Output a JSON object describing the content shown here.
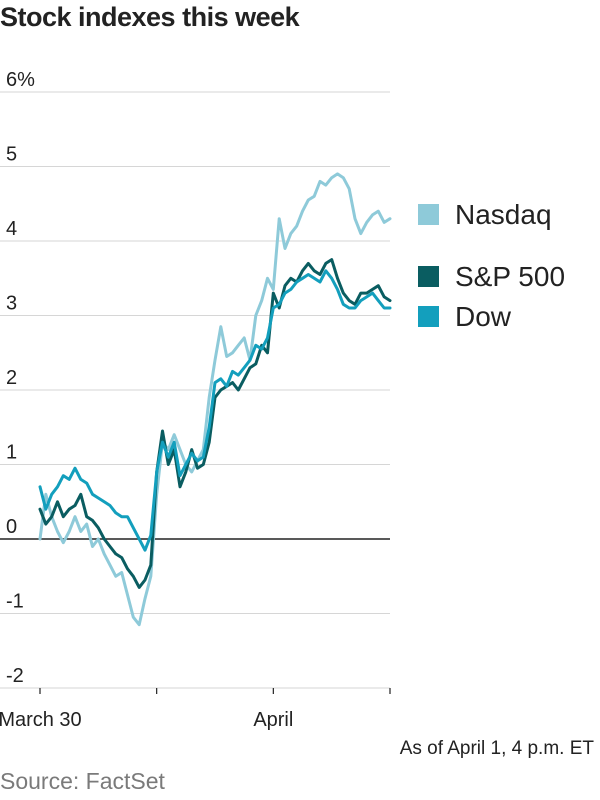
{
  "title": "Stock indexes this week",
  "note": "As of April 1, 4 p.m. ET",
  "source": "Source: FactSet",
  "colors": {
    "nasdaq": "#8ecad9",
    "sp500": "#0a5d61",
    "dow": "#139fbd",
    "grid": "#d6d6d6",
    "zero": "#222222"
  },
  "chart_data": {
    "type": "line",
    "ylim": [
      -2,
      6
    ],
    "yticks": [
      -2,
      -1,
      0,
      1,
      2,
      3,
      4,
      5,
      6
    ],
    "ytick_labels": [
      "-2",
      "-1",
      "0",
      "1",
      "2",
      "3",
      "4",
      "5",
      "6%"
    ],
    "xlim": [
      0,
      30
    ],
    "xticks": [
      0,
      10,
      20,
      30
    ],
    "xtick_labels": [
      "March 30",
      "",
      "April",
      ""
    ],
    "grid": true,
    "legend_position": "right",
    "series": [
      {
        "name": "Nasdaq",
        "color": "#8ecad9",
        "x": [
          0,
          0.5,
          1,
          1.5,
          2,
          2.5,
          3,
          3.5,
          4,
          4.5,
          5,
          5.5,
          6,
          6.5,
          7,
          7.5,
          8,
          8.5,
          9,
          9.5,
          10,
          10.5,
          11,
          11.5,
          12,
          12.5,
          13,
          13.5,
          14,
          14.5,
          15,
          15.5,
          16,
          16.5,
          17,
          17.5,
          18,
          18.5,
          19,
          19.5,
          20,
          20.5,
          21,
          21.5,
          22,
          22.5,
          23,
          23.5,
          24,
          24.5,
          25,
          25.5,
          26,
          26.5,
          27,
          27.5,
          28,
          28.5,
          29,
          29.5,
          30
        ],
        "y": [
          0,
          0.6,
          0.3,
          0.1,
          -0.05,
          0.1,
          0.3,
          0.1,
          0.2,
          -0.1,
          0,
          -0.2,
          -0.35,
          -0.5,
          -0.45,
          -0.75,
          -1.05,
          -1.15,
          -0.8,
          -0.5,
          0.6,
          1.3,
          1.2,
          1.4,
          1.2,
          1.0,
          0.9,
          1.05,
          1.2,
          1.9,
          2.4,
          2.85,
          2.45,
          2.5,
          2.6,
          2.7,
          2.4,
          3.0,
          3.2,
          3.5,
          3.35,
          4.3,
          3.9,
          4.1,
          4.2,
          4.4,
          4.55,
          4.6,
          4.8,
          4.75,
          4.85,
          4.9,
          4.85,
          4.7,
          4.3,
          4.1,
          4.25,
          4.35,
          4.4,
          4.25,
          4.3
        ]
      },
      {
        "name": "S&P 500",
        "color": "#0a5d61",
        "x": [
          0,
          0.5,
          1,
          1.5,
          2,
          2.5,
          3,
          3.5,
          4,
          4.5,
          5,
          5.5,
          6,
          6.5,
          7,
          7.5,
          8,
          8.5,
          9,
          9.5,
          10,
          10.5,
          11,
          11.5,
          12,
          12.5,
          13,
          13.5,
          14,
          14.5,
          15,
          15.5,
          16,
          16.5,
          17,
          17.5,
          18,
          18.5,
          19,
          19.5,
          20,
          20.5,
          21,
          21.5,
          22,
          22.5,
          23,
          23.5,
          24,
          24.5,
          25,
          25.5,
          26,
          26.5,
          27,
          27.5,
          28,
          28.5,
          29,
          29.5,
          30
        ],
        "y": [
          0.4,
          0.2,
          0.3,
          0.5,
          0.3,
          0.4,
          0.45,
          0.6,
          0.3,
          0.25,
          0.15,
          0,
          -0.1,
          -0.2,
          -0.25,
          -0.4,
          -0.5,
          -0.65,
          -0.55,
          -0.35,
          0.9,
          1.45,
          1.0,
          1.2,
          0.7,
          0.9,
          1.2,
          0.95,
          1.0,
          1.3,
          1.9,
          2.0,
          2.05,
          2.1,
          2.0,
          2.15,
          2.3,
          2.35,
          2.6,
          2.5,
          3.3,
          3.1,
          3.4,
          3.5,
          3.45,
          3.6,
          3.7,
          3.6,
          3.55,
          3.7,
          3.75,
          3.5,
          3.3,
          3.2,
          3.15,
          3.3,
          3.3,
          3.35,
          3.4,
          3.25,
          3.2
        ]
      },
      {
        "name": "Dow",
        "color": "#139fbd",
        "x": [
          0,
          0.5,
          1,
          1.5,
          2,
          2.5,
          3,
          3.5,
          4,
          4.5,
          5,
          5.5,
          6,
          6.5,
          7,
          7.5,
          8,
          8.5,
          9,
          9.5,
          10,
          10.5,
          11,
          11.5,
          12,
          12.5,
          13,
          13.5,
          14,
          14.5,
          15,
          15.5,
          16,
          16.5,
          17,
          17.5,
          18,
          18.5,
          19,
          19.5,
          20,
          20.5,
          21,
          21.5,
          22,
          22.5,
          23,
          23.5,
          24,
          24.5,
          25,
          25.5,
          26,
          26.5,
          27,
          27.5,
          28,
          28.5,
          29,
          29.5,
          30
        ],
        "y": [
          0.7,
          0.4,
          0.6,
          0.7,
          0.85,
          0.8,
          0.95,
          0.8,
          0.75,
          0.6,
          0.55,
          0.5,
          0.45,
          0.35,
          0.3,
          0.3,
          0.15,
          0.0,
          -0.15,
          0.05,
          0.9,
          1.3,
          1.1,
          1.3,
          0.85,
          1.0,
          1.15,
          1.05,
          1.1,
          1.5,
          2.1,
          2.15,
          2.05,
          2.25,
          2.2,
          2.3,
          2.4,
          2.6,
          2.55,
          2.7,
          3.1,
          3.15,
          3.3,
          3.35,
          3.45,
          3.5,
          3.55,
          3.5,
          3.45,
          3.6,
          3.5,
          3.35,
          3.15,
          3.1,
          3.1,
          3.2,
          3.25,
          3.3,
          3.2,
          3.1,
          3.1
        ]
      }
    ]
  }
}
